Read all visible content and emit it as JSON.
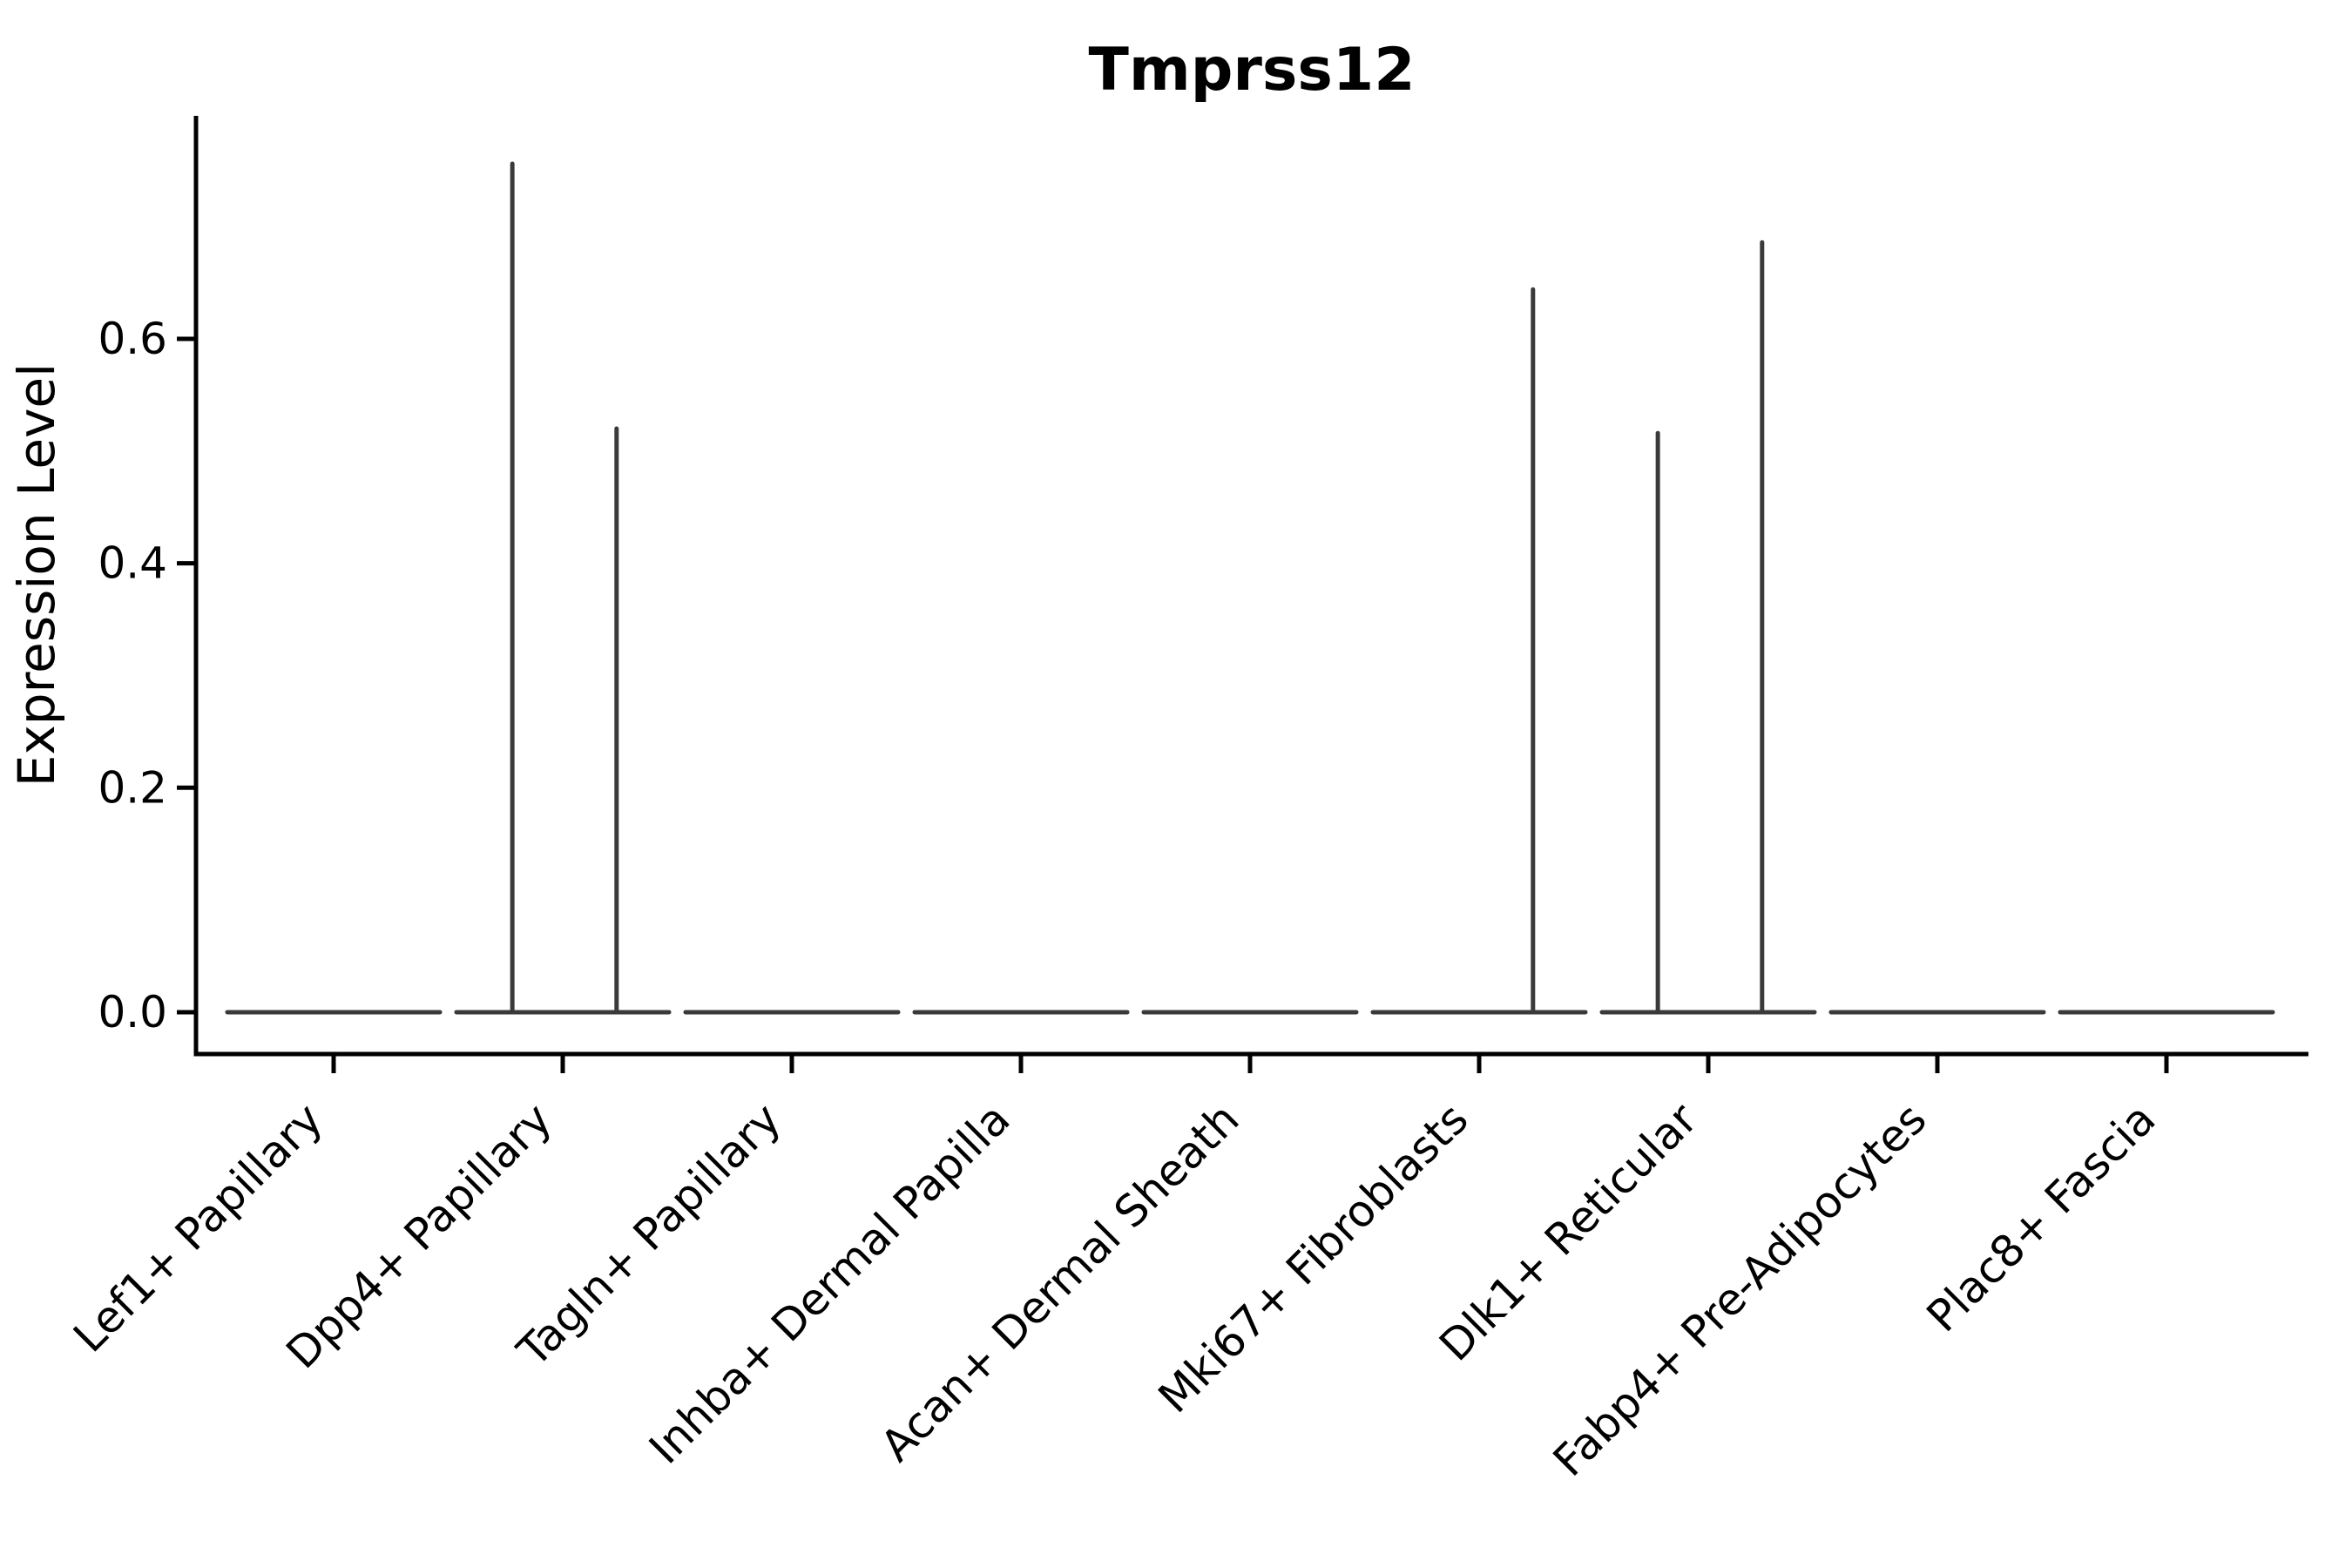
{
  "chart_data": {
    "type": "violin",
    "title": "Tmprss12",
    "xlabel": "",
    "ylabel": "Expression Level",
    "grid": false,
    "legend": null,
    "ylim": [
      -0.0373,
      0.7987
    ],
    "yticks": [
      {
        "value": 0.0,
        "label": "0.0"
      },
      {
        "value": 0.2,
        "label": "0.2"
      },
      {
        "value": 0.4,
        "label": "0.4"
      },
      {
        "value": 0.6,
        "label": "0.6"
      }
    ],
    "categories": [
      "Lef1+ Papillary",
      "Dpp4+ Papillary",
      "Tagln+ Papillary",
      "Inhba+ Dermal Papilla",
      "Acan+ Dermal Sheath",
      "Mki67+ Fibroblasts",
      "Dlk1+ Reticular",
      "Fabp4+ Pre-Adipocytes",
      "Plac8+ Fascia"
    ],
    "violins": [
      {
        "category": "Lef1+ Papillary",
        "baseline_value": 0.0,
        "spikes": []
      },
      {
        "category": "Dpp4+ Papillary",
        "baseline_value": 0.0,
        "spikes": [
          {
            "offset_frac": -0.22,
            "value": 0.756
          },
          {
            "offset_frac": 0.235,
            "value": 0.52
          }
        ]
      },
      {
        "category": "Tagln+ Papillary",
        "baseline_value": 0.0,
        "spikes": []
      },
      {
        "category": "Inhba+ Dermal Papilla",
        "baseline_value": 0.0,
        "spikes": []
      },
      {
        "category": "Acan+ Dermal Sheath",
        "baseline_value": 0.0,
        "spikes": []
      },
      {
        "category": "Mki67+ Fibroblasts",
        "baseline_value": 0.0,
        "spikes": [
          {
            "offset_frac": 0.235,
            "value": 0.644
          }
        ]
      },
      {
        "category": "Dlk1+ Reticular",
        "baseline_value": 0.0,
        "spikes": [
          {
            "offset_frac": -0.22,
            "value": 0.516
          },
          {
            "offset_frac": 0.235,
            "value": 0.686
          }
        ]
      },
      {
        "category": "Fabp4+ Pre-Adipocytes",
        "baseline_value": 0.0,
        "spikes": []
      },
      {
        "category": "Plac8+ Fascia",
        "baseline_value": 0.0,
        "spikes": []
      }
    ],
    "colors": {
      "violin_stroke": "#3a3a3a",
      "axis": "#000000",
      "text": "#000000",
      "background": "#ffffff"
    }
  }
}
